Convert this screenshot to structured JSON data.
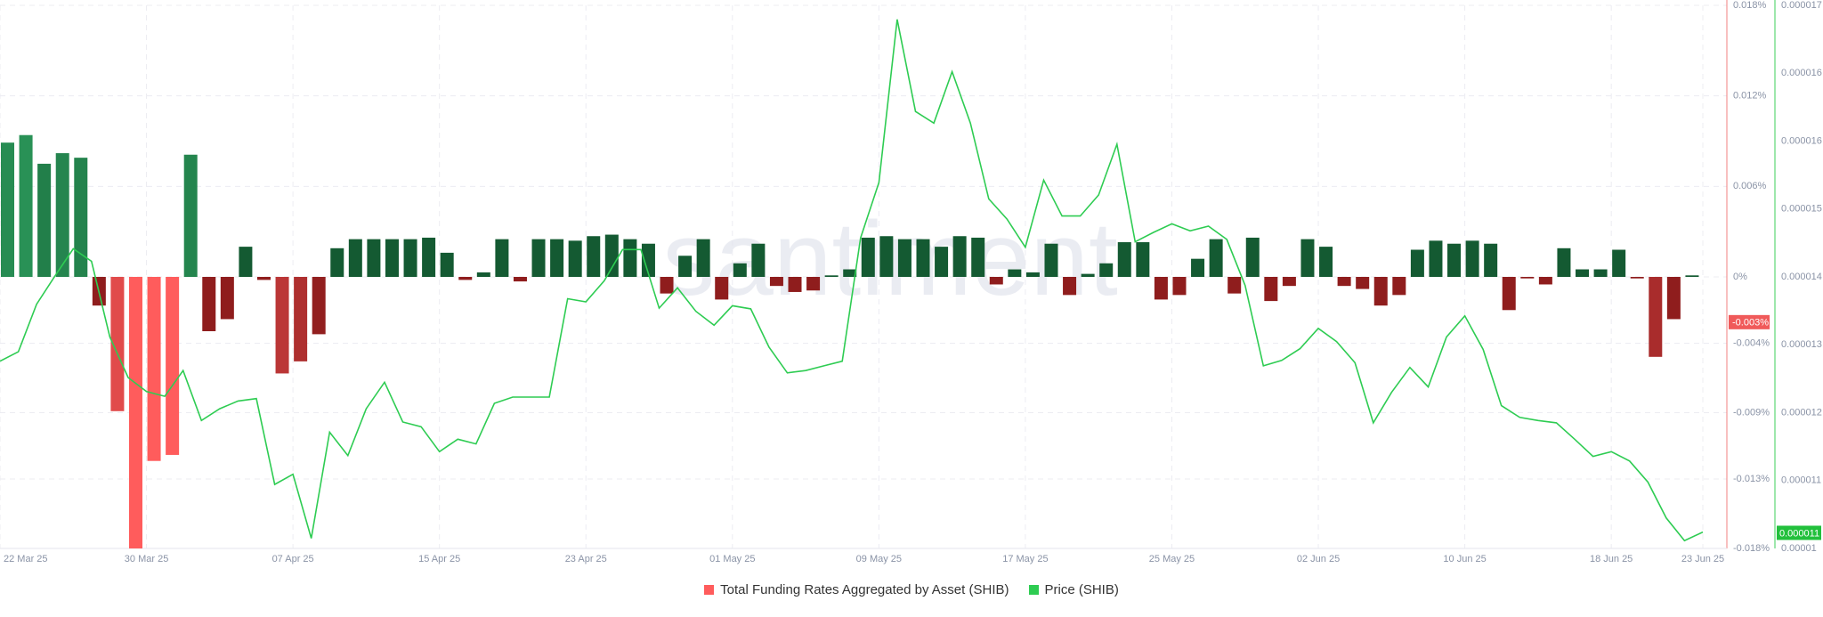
{
  "chart_data": {
    "type": "bar",
    "watermark": "santiment",
    "categories": [
      "22 Mar 25",
      null,
      null,
      null,
      null,
      null,
      null,
      null,
      "30 Mar 25",
      null,
      null,
      null,
      null,
      null,
      null,
      null,
      "07 Apr 25",
      null,
      null,
      null,
      null,
      null,
      null,
      null,
      "15 Apr 25",
      null,
      null,
      null,
      null,
      null,
      null,
      null,
      "23 Apr 25",
      null,
      null,
      null,
      null,
      null,
      null,
      null,
      "01 May 25",
      null,
      null,
      null,
      null,
      null,
      null,
      null,
      "09 May 25",
      null,
      null,
      null,
      null,
      null,
      null,
      null,
      "17 May 25",
      null,
      null,
      null,
      null,
      null,
      null,
      null,
      "25 May 25",
      null,
      null,
      null,
      null,
      null,
      null,
      null,
      "02 Jun 25",
      null,
      null,
      null,
      null,
      null,
      null,
      null,
      "10 Jun 25",
      null,
      null,
      null,
      null,
      null,
      null,
      null,
      "18 Jun 25",
      null,
      null,
      null,
      null,
      "23 Jun 25"
    ],
    "series": [
      {
        "name": "Total Funding Rates Aggregated by Asset (SHIB)",
        "type": "bar",
        "axis": "y",
        "color": "#ff5c5c",
        "colors": {
          "positive": "#145a32",
          "negative": "#8f1d1d"
        },
        "strong_colors": {
          "positive": "#2e9e5f",
          "negative": "#ff5c5c"
        },
        "values": [
          0.0089,
          0.0094,
          0.0075,
          0.0082,
          0.0079,
          -0.0019,
          -0.0089,
          -0.018,
          -0.0122,
          -0.0118,
          0.0081,
          -0.0036,
          -0.0028,
          0.002,
          -0.0002,
          -0.0064,
          -0.0056,
          -0.0038,
          0.0019,
          0.0025,
          0.0025,
          0.0025,
          0.0025,
          0.0026,
          0.0016,
          -0.0002,
          0.0003,
          0.0025,
          -0.0003,
          0.0025,
          0.0025,
          0.0024,
          0.0027,
          0.0028,
          0.0025,
          0.0022,
          -0.0011,
          0.0014,
          0.0025,
          -0.0015,
          0.0009,
          0.0022,
          -0.0006,
          -0.001,
          -0.0009,
          0.0001,
          0.0005,
          0.0026,
          0.0027,
          0.0025,
          0.0025,
          0.002,
          0.0027,
          0.0026,
          -0.0005,
          0.0005,
          0.0003,
          0.0022,
          -0.0012,
          0.0002,
          0.0009,
          0.0023,
          0.0023,
          -0.0015,
          -0.0012,
          0.0012,
          0.0025,
          -0.0011,
          0.0026,
          -0.0016,
          -0.0006,
          0.0025,
          0.002,
          -0.0006,
          -0.0008,
          -0.0019,
          -0.0012,
          0.0018,
          0.0024,
          0.0022,
          0.0024,
          0.0022,
          -0.0022,
          -0.0001,
          -0.0005,
          0.0019,
          0.0005,
          0.0005,
          0.0018,
          -0.0001,
          -0.0053,
          -0.0028,
          0.0001,
          null
        ]
      },
      {
        "name": "Price (SHIB)",
        "type": "line",
        "axis": "y2",
        "color": "#2ecc52",
        "values": [
          1.27e-05,
          1.282e-05,
          1.343e-05,
          1.379e-05,
          1.414e-05,
          1.398e-05,
          1.301e-05,
          1.249e-05,
          1.231e-05,
          1.225e-05,
          1.258e-05,
          1.194e-05,
          1.209e-05,
          1.219e-05,
          1.222e-05,
          1.112e-05,
          1.125e-05,
          1.043e-05,
          1.179e-05,
          1.149e-05,
          1.209e-05,
          1.243e-05,
          1.192e-05,
          1.186e-05,
          1.154e-05,
          1.17e-05,
          1.164e-05,
          1.216e-05,
          1.224e-05,
          1.224e-05,
          1.224e-05,
          1.35e-05,
          1.346e-05,
          1.373e-05,
          1.413e-05,
          1.413e-05,
          1.338e-05,
          1.364e-05,
          1.334e-05,
          1.316e-05,
          1.341e-05,
          1.337e-05,
          1.288e-05,
          1.255e-05,
          1.258e-05,
          1.264e-05,
          1.27e-05,
          1.428e-05,
          1.499e-05,
          1.708e-05,
          1.59e-05,
          1.575e-05,
          1.641e-05,
          1.575e-05,
          1.478e-05,
          1.452e-05,
          1.416e-05,
          1.502e-05,
          1.456e-05,
          1.456e-05,
          1.483e-05,
          1.548e-05,
          1.423e-05,
          1.435e-05,
          1.446e-05,
          1.437e-05,
          1.443e-05,
          1.426e-05,
          1.367e-05,
          1.264e-05,
          1.271e-05,
          1.286e-05,
          1.312e-05,
          1.295e-05,
          1.268e-05,
          1.191e-05,
          1.23e-05,
          1.262e-05,
          1.237e-05,
          1.301e-05,
          1.328e-05,
          1.285e-05,
          1.213e-05,
          1.198e-05,
          1.194e-05,
          1.191e-05,
          1.17e-05,
          1.148e-05,
          1.154e-05,
          1.142e-05,
          1.115e-05,
          1.069e-05,
          1.04e-05,
          1.051e-05
        ]
      }
    ],
    "ylim": [
      -0.018,
      0.018
    ],
    "yticks": [
      {
        "value": 0.018,
        "label": "0.018%"
      },
      {
        "value": 0.012,
        "label": "0.012%"
      },
      {
        "value": 0.006,
        "label": "0.006%"
      },
      {
        "value": 0,
        "label": "0%"
      },
      {
        "value": -0.0044,
        "label": "-0.004%"
      },
      {
        "value": -0.009,
        "label": "-0.009%"
      },
      {
        "value": -0.0134,
        "label": "-0.013%"
      },
      {
        "value": -0.018,
        "label": "-0.018%"
      }
    ],
    "y2lim": [
      1.03e-05,
      1.726e-05
    ],
    "y2ticks": [
      {
        "value": 1.03e-05,
        "label": "0.00001"
      },
      {
        "value": 1.117e-05,
        "label": "0.000011"
      },
      {
        "value": 1.204e-05,
        "label": "0.000012"
      },
      {
        "value": 1.291e-05,
        "label": "0.000013"
      },
      {
        "value": 1.378e-05,
        "label": "0.000014"
      },
      {
        "value": 1.465e-05,
        "label": "0.000015"
      },
      {
        "value": 1.552e-05,
        "label": "0.000016"
      },
      {
        "value": 1.639e-05,
        "label": "0.000016"
      },
      {
        "value": 1.726e-05,
        "label": "0.000017"
      }
    ],
    "funding_marker": {
      "value": -0.003,
      "label": "-0.003%"
    },
    "price_marker": {
      "value": 1.05e-05,
      "label": "0.000011"
    },
    "grid": true,
    "legend": "bottom"
  }
}
